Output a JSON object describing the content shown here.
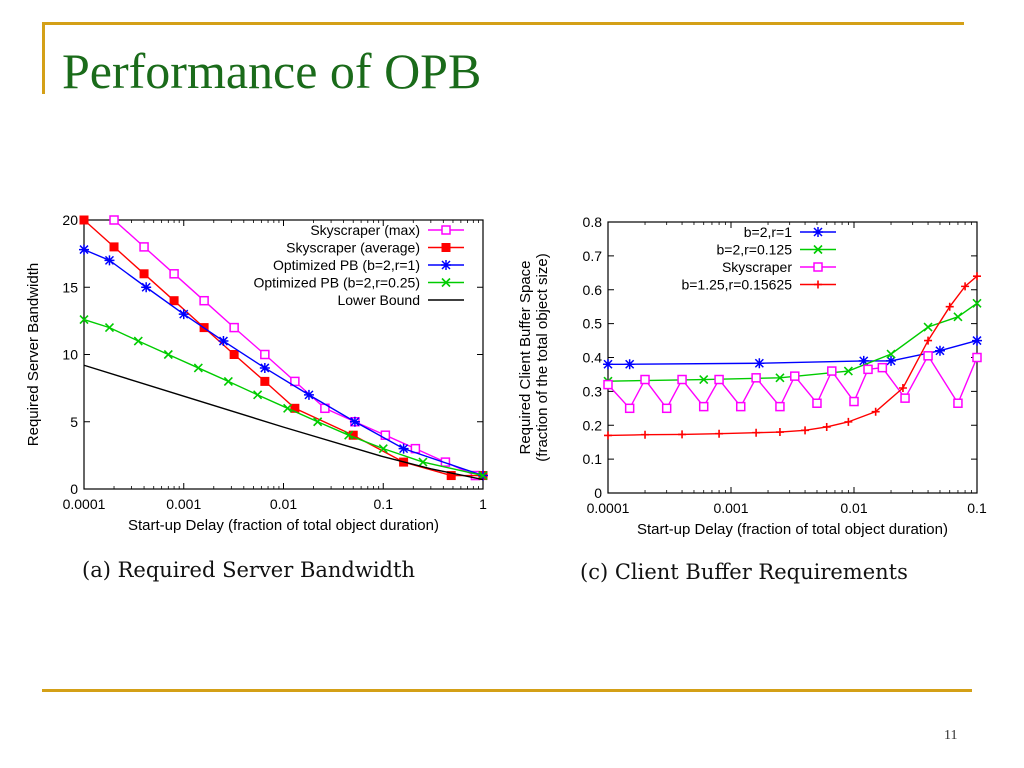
{
  "slide": {
    "title": "Performance of OPB",
    "page_number": "11",
    "accent_color": "#d4a017",
    "title_color": "#1a6b1a"
  },
  "chart_data": [
    {
      "type": "line",
      "caption": "(a) Required Server Bandwidth",
      "xlabel": "Start-up Delay (fraction of total object duration)",
      "ylabel": "Required Server Bandwidth",
      "xscale": "log",
      "xlim": [
        0.0001,
        1
      ],
      "ylim": [
        0,
        20
      ],
      "xticks": [
        0.0001,
        0.001,
        0.01,
        0.1,
        1
      ],
      "xtick_labels": [
        "0.0001",
        "0.001",
        "0.01",
        "0.1",
        "1"
      ],
      "yticks": [
        0,
        5,
        10,
        15,
        20
      ],
      "ytick_labels": [
        "0",
        "5",
        "10",
        "15",
        "20"
      ],
      "legend_position": "top-right",
      "series": [
        {
          "name": "Skyscraper (max)",
          "color": "#ff00ff",
          "marker": "open-square",
          "x": [
            0.0002,
            0.0004,
            0.0008,
            0.0016,
            0.0032,
            0.0065,
            0.013,
            0.026,
            0.052,
            0.105,
            0.21,
            0.42,
            0.84
          ],
          "y": [
            20,
            18,
            16,
            14,
            12,
            10,
            8,
            6,
            5,
            4,
            3,
            2,
            1
          ]
        },
        {
          "name": "Skyscraper (average)",
          "color": "#ff0000",
          "marker": "filled-square",
          "x": [
            0.0001,
            0.0002,
            0.0004,
            0.0008,
            0.0016,
            0.0032,
            0.0065,
            0.013,
            0.05,
            0.16,
            0.48,
            1
          ],
          "y": [
            20,
            18,
            16,
            14,
            12,
            10,
            8,
            6,
            4,
            2,
            1,
            1
          ]
        },
        {
          "name": "Optimized PB (b=2,r=1)",
          "color": "#0000ff",
          "marker": "star",
          "x": [
            0.0001,
            0.00018,
            0.00042,
            0.001,
            0.0025,
            0.0065,
            0.018,
            0.052,
            0.16,
            1
          ],
          "y": [
            17.8,
            17,
            15,
            13,
            11,
            9,
            7,
            5,
            3,
            1
          ]
        },
        {
          "name": "Optimized PB (b=2,r=0.25)",
          "color": "#00cc00",
          "marker": "x",
          "x": [
            0.0001,
            0.00018,
            0.00035,
            0.0007,
            0.0014,
            0.0028,
            0.0055,
            0.011,
            0.022,
            0.045,
            0.1,
            0.25,
            1
          ],
          "y": [
            12.6,
            12,
            11,
            10,
            9,
            8,
            7,
            6,
            5,
            4,
            3,
            2,
            1
          ]
        },
        {
          "name": "Lower Bound",
          "color": "#000000",
          "marker": "none",
          "x": [
            0.0001,
            0.001,
            0.01,
            0.1,
            0.3,
            1
          ],
          "y": [
            9.2,
            6.9,
            4.6,
            2.4,
            1.5,
            0.7
          ]
        }
      ]
    },
    {
      "type": "line",
      "caption": "(c) Client Buffer Requirements",
      "xlabel": "Start-up Delay (fraction of total object duration)",
      "ylabel": "Required Client Buffer Space",
      "ylabel2": "(fraction of the total object size)",
      "xscale": "log",
      "xlim": [
        0.0001,
        0.1
      ],
      "ylim": [
        0,
        0.8
      ],
      "xticks": [
        0.0001,
        0.001,
        0.01,
        0.1
      ],
      "xtick_labels": [
        "0.0001",
        "0.001",
        "0.01",
        "0.1"
      ],
      "yticks": [
        0,
        0.1,
        0.2,
        0.3,
        0.4,
        0.5,
        0.6,
        0.7,
        0.8
      ],
      "ytick_labels": [
        "0",
        "0.1",
        "0.2",
        "0.3",
        "0.4",
        "0.5",
        "0.6",
        "0.7",
        "0.8"
      ],
      "legend_position": "top-right",
      "series": [
        {
          "name": "b=2,r=1",
          "color": "#0000ff",
          "marker": "star",
          "x": [
            0.0001,
            0.00015,
            0.0017,
            0.012,
            0.02,
            0.05,
            0.1
          ],
          "y": [
            0.38,
            0.38,
            0.383,
            0.39,
            0.39,
            0.42,
            0.45
          ]
        },
        {
          "name": "b=2,r=0.125",
          "color": "#00cc00",
          "marker": "x",
          "x": [
            0.0001,
            0.0006,
            0.0025,
            0.009,
            0.02,
            0.04,
            0.07,
            0.1
          ],
          "y": [
            0.33,
            0.335,
            0.34,
            0.36,
            0.41,
            0.49,
            0.52,
            0.56
          ]
        },
        {
          "name": "Skyscraper",
          "color": "#ff00ff",
          "marker": "open-square",
          "x": [
            0.0001,
            0.00015,
            0.0002,
            0.0003,
            0.0004,
            0.0006,
            0.0008,
            0.0012,
            0.0016,
            0.0025,
            0.0033,
            0.005,
            0.0066,
            0.01,
            0.013,
            0.017,
            0.026,
            0.04,
            0.07,
            0.1
          ],
          "y": [
            0.32,
            0.25,
            0.335,
            0.25,
            0.335,
            0.255,
            0.335,
            0.255,
            0.34,
            0.255,
            0.345,
            0.265,
            0.36,
            0.27,
            0.365,
            0.37,
            0.28,
            0.405,
            0.265,
            0.4
          ]
        },
        {
          "name": "b=1.25,r=0.15625",
          "color": "#ff0000",
          "marker": "plus",
          "x": [
            0.0001,
            0.0002,
            0.0004,
            0.0008,
            0.0016,
            0.0025,
            0.004,
            0.006,
            0.009,
            0.015,
            0.025,
            0.04,
            0.06,
            0.08,
            0.1
          ],
          "y": [
            0.17,
            0.172,
            0.173,
            0.175,
            0.178,
            0.18,
            0.185,
            0.195,
            0.21,
            0.24,
            0.31,
            0.45,
            0.55,
            0.61,
            0.64
          ]
        }
      ]
    }
  ]
}
